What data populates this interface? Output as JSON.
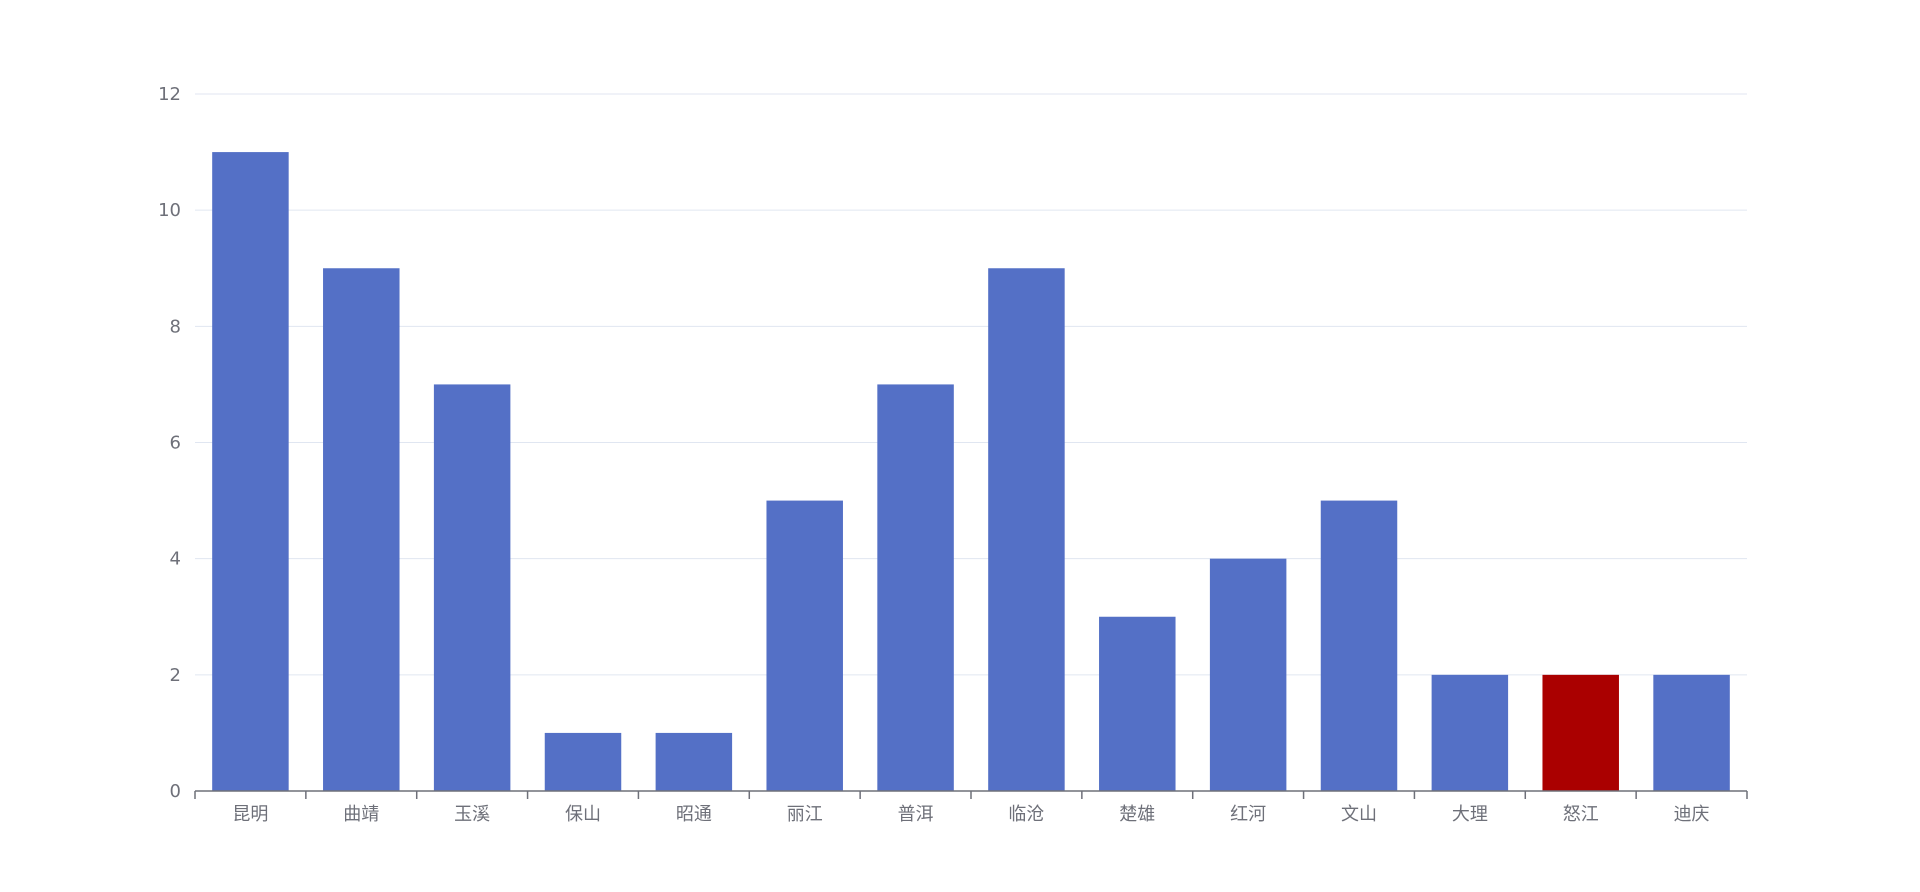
{
  "chart_data": {
    "type": "bar",
    "categories": [
      "昆明",
      "曲靖",
      "玉溪",
      "保山",
      "昭通",
      "丽江",
      "普洱",
      "临沧",
      "楚雄",
      "红河",
      "文山",
      "大理",
      "怒江",
      "迪庆"
    ],
    "values": [
      11,
      9,
      7,
      1,
      1,
      5,
      7,
      9,
      3,
      4,
      5,
      2,
      2,
      2
    ],
    "highlight_index": 12,
    "ylim": [
      0,
      12
    ],
    "yticks": [
      0,
      2,
      4,
      6,
      8,
      10,
      12
    ],
    "grid": true,
    "title": "",
    "xlabel": "",
    "ylabel": "",
    "colors": {
      "bar": "#5470c6",
      "highlight": "#aa0000",
      "grid": "#e0e6f1",
      "axis": "#6e7079",
      "label": "#6e7079"
    }
  }
}
